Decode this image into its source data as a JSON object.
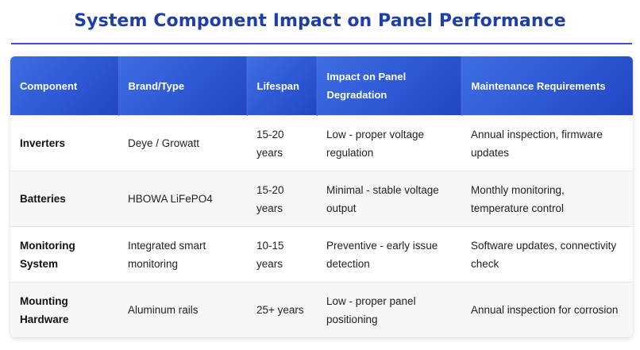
{
  "title": "System Component Impact on Panel Performance",
  "colors": {
    "title": "#1e3fa8",
    "header_start": "#3f6ee6",
    "header_end": "#2146c4",
    "alt_row": "#f6f7fa"
  },
  "table": {
    "headers": [
      "Component",
      "Brand/Type",
      "Lifespan",
      "Impact on Panel Degradation",
      "Maintenance Requirements"
    ],
    "rows": [
      [
        "Inverters",
        "Deye / Growatt",
        "15-20 years",
        "Low - proper voltage regulation",
        "Annual inspection, firmware updates"
      ],
      [
        "Batteries",
        "HBOWA LiFePO4",
        "15-20 years",
        "Minimal - stable voltage output",
        "Monthly monitoring, temperature control"
      ],
      [
        "Monitoring System",
        "Integrated smart monitoring",
        "10-15 years",
        "Preventive - early issue detection",
        "Software updates, connectivity check"
      ],
      [
        "Mounting Hardware",
        "Aluminum rails",
        "25+ years",
        "Low - proper panel positioning",
        "Annual inspection for corrosion"
      ]
    ]
  }
}
